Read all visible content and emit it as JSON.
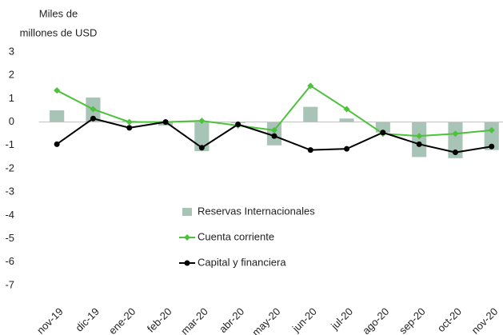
{
  "chart_data": {
    "type": "bar_line",
    "y_label": [
      "Miles de",
      "millones de USD"
    ],
    "categories": [
      "nov-19",
      "dic-19",
      "ene-20",
      "feb-20",
      "mar-20",
      "abr-20",
      "may-20",
      "jun-20",
      "jul-20",
      "ago-20",
      "sep-20",
      "oct-20",
      "nov-20"
    ],
    "series": [
      {
        "name": "Reservas Internacionales",
        "type": "bar",
        "color": "#a8c4b7",
        "values": [
          0.5,
          1.05,
          0.05,
          -0.15,
          -1.25,
          -0.05,
          -1.0,
          0.65,
          0.15,
          -0.45,
          -1.5,
          -1.55,
          -1.2
        ]
      },
      {
        "name": "Cuenta corriente",
        "type": "line",
        "marker": "diamond",
        "color": "#4cc23a",
        "values": [
          1.35,
          0.55,
          0.0,
          0.0,
          0.05,
          -0.15,
          -0.35,
          1.55,
          0.55,
          -0.5,
          -0.6,
          -0.5,
          -0.35
        ]
      },
      {
        "name": "Capital y financiera",
        "type": "line",
        "marker": "circle",
        "color": "#000000",
        "values": [
          -0.95,
          0.15,
          -0.25,
          0.0,
          -1.1,
          -0.1,
          -0.6,
          -1.2,
          -1.15,
          -0.45,
          -0.95,
          -1.3,
          -1.05
        ]
      }
    ],
    "ylim": [
      -7,
      3
    ],
    "yticks": [
      3,
      2,
      1,
      0,
      -1,
      -2,
      -3,
      -4,
      -5,
      -6,
      -7
    ],
    "grid": false,
    "legend": "bottom-center"
  }
}
